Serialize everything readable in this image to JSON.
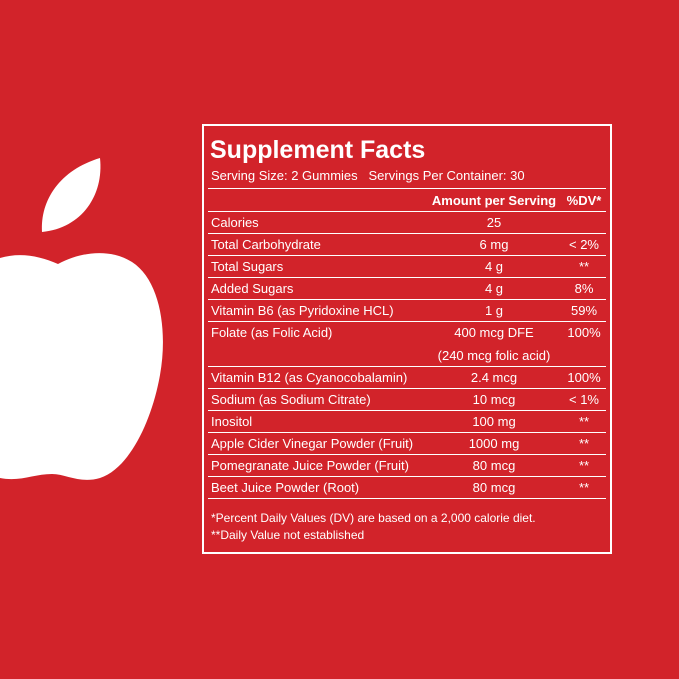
{
  "panel": {
    "title": "Supplement Facts",
    "serving": "Serving Size: 2 Gummies   Servings Per Container: 30",
    "header": {
      "amount": "Amount per Serving",
      "dv": "%DV*"
    },
    "rows": [
      {
        "name": "Calories",
        "amount": "25"
      },
      {
        "name": "Total Carbohydrate",
        "amount": "6 mg",
        "dv": "< 2%"
      },
      {
        "name": "Total Sugars",
        "amount": "4 g",
        "dv": "**"
      },
      {
        "name": "Added Sugars",
        "amount": "4 g",
        "dv": "8%"
      },
      {
        "name": "Vitamin B6 (as Pyridoxine HCL)",
        "amount": "1 g",
        "dv": "59%"
      },
      {
        "name": "Folate (as Folic Acid)",
        "amount": "400 mcg DFE",
        "amount_note": "(240 mcg folic acid)",
        "dv": "100%"
      },
      {
        "name": "Vitamin B12 (as Cyanocobalamin)",
        "amount": "2.4 mcg",
        "dv": "100%"
      },
      {
        "name": "Sodium (as Sodium Citrate)",
        "amount": "10 mcg",
        "dv": "< 1%"
      },
      {
        "name": "Inositol",
        "amount": "100 mg",
        "dv": "**"
      },
      {
        "name": "Apple Cider Vinegar Powder (Fruit)",
        "amount": "1000 mg",
        "dv": "**"
      },
      {
        "name": "Pomegranate Juice Powder (Fruit)",
        "amount": "80 mcg",
        "dv": "**"
      },
      {
        "name": "Beet Juice Powder (Root)",
        "amount": "80 mcg",
        "dv": "**"
      }
    ],
    "footnotes": [
      "*Percent Daily Values (DV) are based on a 2,000 calorie diet.",
      "**Daily Value not established"
    ]
  }
}
